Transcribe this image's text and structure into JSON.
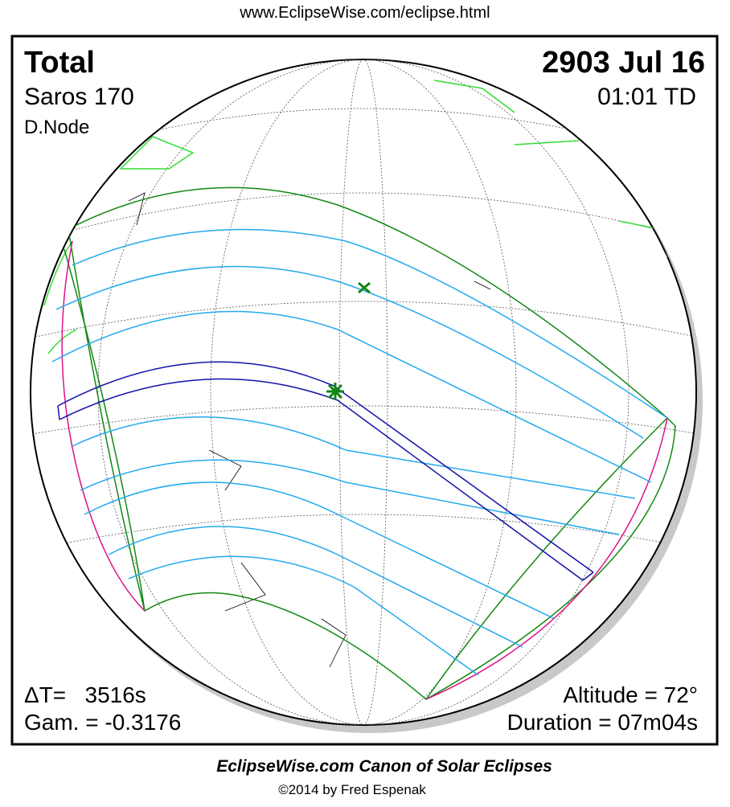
{
  "header": {
    "url": "www.EclipseWise.com/eclipse.html"
  },
  "eclipse": {
    "type": "Total",
    "saros": "Saros 170",
    "node": "D.Node",
    "date": "2903 Jul 16",
    "time": "01:01 TD",
    "delta_t": "ΔT=   3516s",
    "gamma": "Gam. = -0.3176",
    "altitude": "Altitude = 72°",
    "duration": "Duration = 07m04s"
  },
  "footer": {
    "title": "EclipseWise.com Canon of Solar Eclipses",
    "copyright": "©2014 by Fred Espenak"
  }
}
